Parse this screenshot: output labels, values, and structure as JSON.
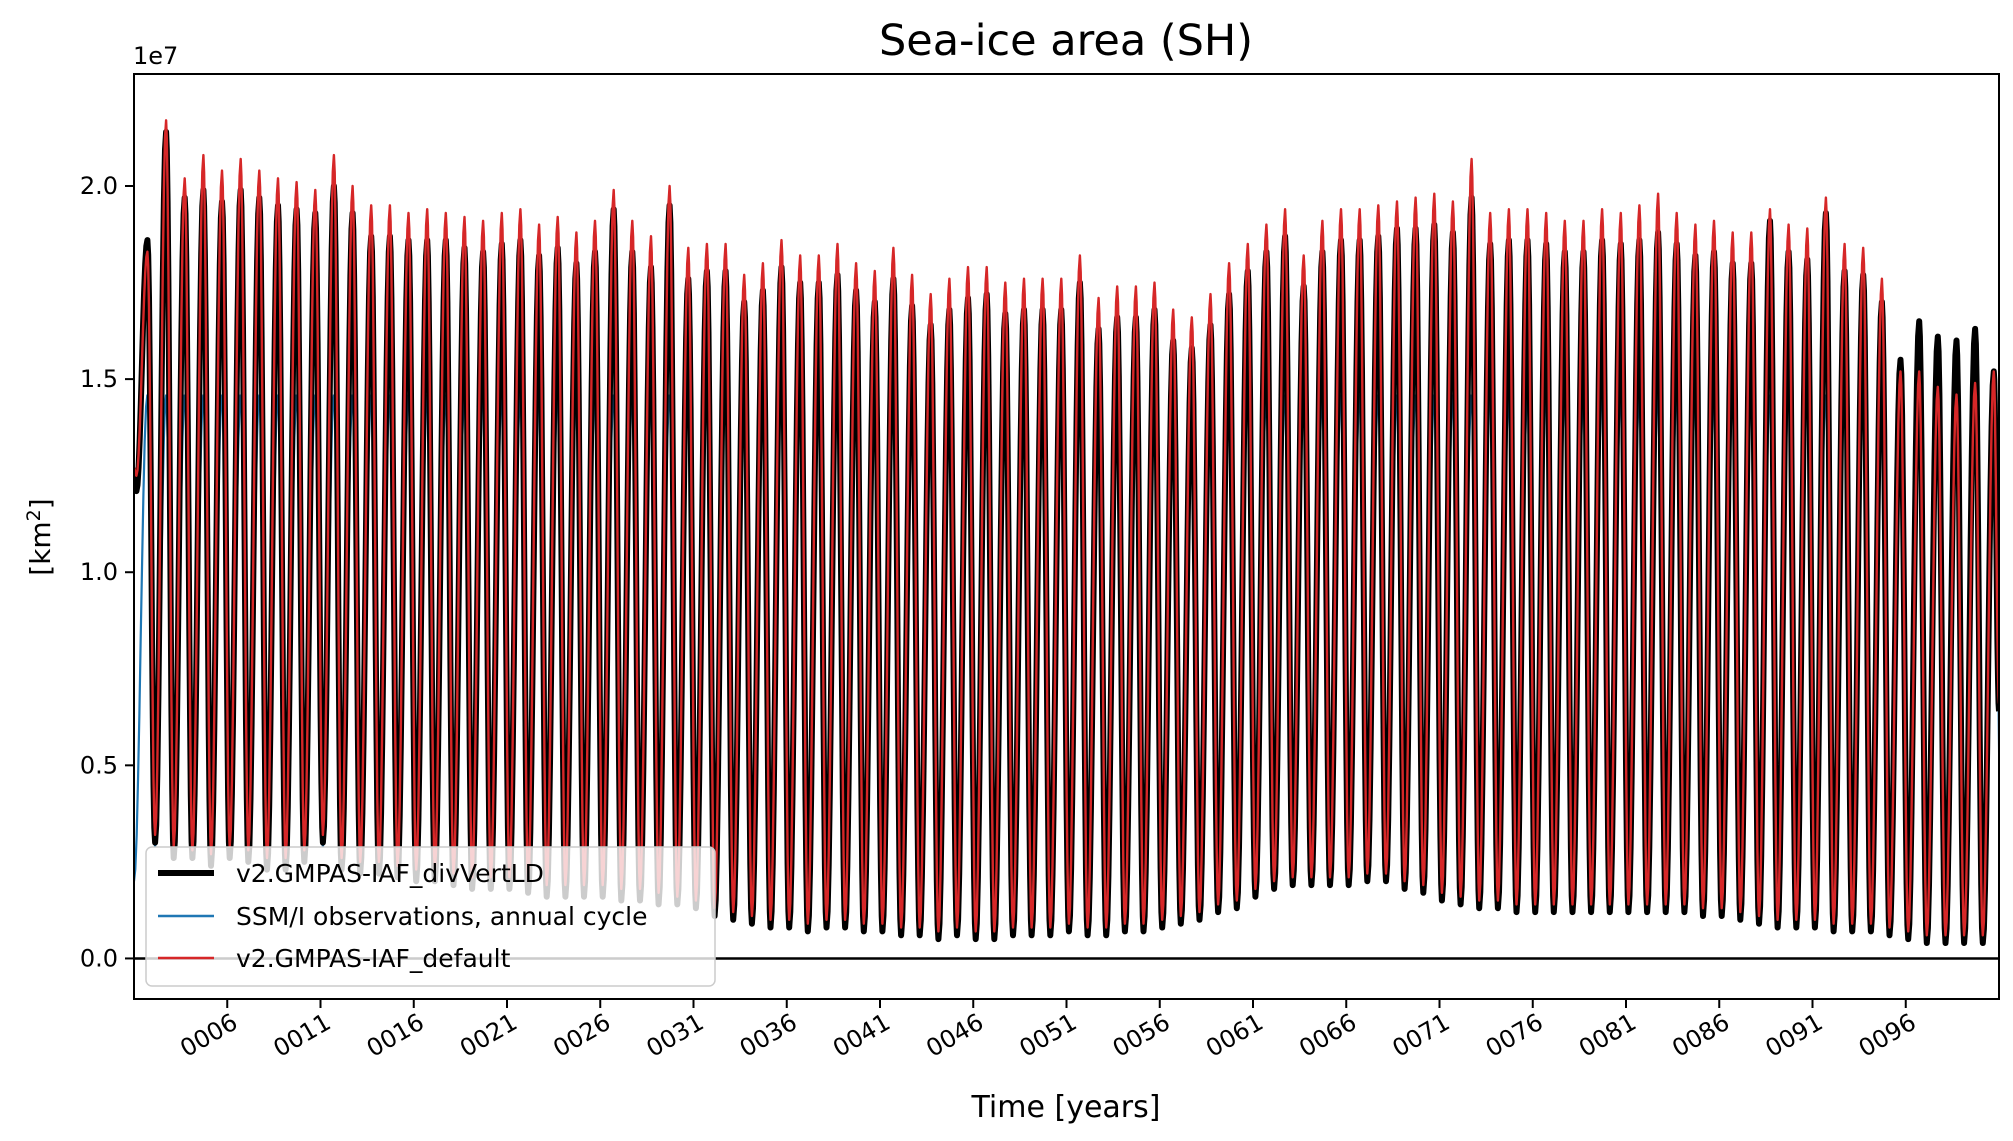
{
  "chart_data": {
    "type": "line",
    "title": "Sea-ice area (SH)",
    "xlabel": "Time [years]",
    "ylabel_main": "[km",
    "ylabel_sup": "2",
    "ylabel_close": "]",
    "offset_text": "1e7",
    "xlim": [
      1,
      101
    ],
    "ylim": [
      -1.05,
      22.9
    ],
    "y_scale_note": "y values in units of 1e6 km^2 (axis shows 1e7 offset)",
    "yticks": [
      {
        "value": 0.0,
        "label": "0.0"
      },
      {
        "value": 5.0,
        "label": "0.5"
      },
      {
        "value": 10.0,
        "label": "1.0"
      },
      {
        "value": 15.0,
        "label": "1.5"
      },
      {
        "value": 20.0,
        "label": "2.0"
      }
    ],
    "xticks": [
      {
        "value": 6,
        "label": "0006"
      },
      {
        "value": 11,
        "label": "0011"
      },
      {
        "value": 16,
        "label": "0016"
      },
      {
        "value": 21,
        "label": "0021"
      },
      {
        "value": 26,
        "label": "0026"
      },
      {
        "value": 31,
        "label": "0031"
      },
      {
        "value": 36,
        "label": "0036"
      },
      {
        "value": 41,
        "label": "0041"
      },
      {
        "value": 46,
        "label": "0046"
      },
      {
        "value": 51,
        "label": "0051"
      },
      {
        "value": 56,
        "label": "0056"
      },
      {
        "value": 61,
        "label": "0061"
      },
      {
        "value": 66,
        "label": "0066"
      },
      {
        "value": 71,
        "label": "0071"
      },
      {
        "value": 76,
        "label": "0076"
      },
      {
        "value": 81,
        "label": "0081"
      },
      {
        "value": 86,
        "label": "0086"
      },
      {
        "value": 91,
        "label": "0091"
      },
      {
        "value": 96,
        "label": "0096"
      }
    ],
    "zero_line": 0,
    "legend_position": "lower-left",
    "series": [
      {
        "name": "v2.GMPAS-IAF_divVertLD",
        "color": "#000000",
        "style": "thick",
        "start": 12.3,
        "years": [
          1,
          2,
          3,
          4,
          5,
          6,
          7,
          8,
          9,
          10,
          11,
          12,
          13,
          14,
          15,
          16,
          17,
          18,
          19,
          20,
          21,
          22,
          23,
          24,
          25,
          26,
          27,
          28,
          29,
          30,
          31,
          32,
          33,
          34,
          35,
          36,
          37,
          38,
          39,
          40,
          41,
          42,
          43,
          44,
          45,
          46,
          47,
          48,
          49,
          50,
          51,
          52,
          53,
          54,
          55,
          56,
          57,
          58,
          59,
          60,
          61,
          62,
          63,
          64,
          65,
          66,
          67,
          68,
          69,
          70,
          71,
          72,
          73,
          74,
          75,
          76,
          77,
          78,
          79,
          80,
          81,
          82,
          83,
          84,
          85,
          86,
          87,
          88,
          89,
          90,
          91,
          92,
          93,
          94,
          95,
          96,
          97,
          98,
          99,
          100
        ],
        "peaks": [
          18.6,
          21.4,
          19.7,
          19.9,
          19.6,
          19.9,
          19.7,
          19.5,
          19.4,
          19.3,
          20.0,
          19.3,
          18.7,
          18.7,
          18.6,
          18.6,
          18.6,
          18.4,
          18.3,
          18.5,
          18.6,
          18.2,
          18.4,
          18.0,
          18.3,
          19.4,
          18.3,
          17.9,
          19.5,
          17.6,
          17.8,
          17.8,
          17.0,
          17.3,
          17.9,
          17.5,
          17.5,
          17.7,
          17.3,
          17.0,
          17.6,
          16.9,
          16.4,
          16.8,
          17.1,
          17.2,
          16.7,
          16.8,
          16.8,
          16.8,
          17.5,
          16.3,
          16.6,
          16.6,
          16.8,
          16.0,
          15.8,
          16.4,
          17.2,
          17.8,
          18.3,
          18.7,
          17.4,
          18.3,
          18.6,
          18.6,
          18.7,
          18.9,
          18.9,
          19.0,
          18.8,
          19.7,
          18.5,
          18.6,
          18.6,
          18.5,
          18.3,
          18.3,
          18.6,
          18.5,
          18.6,
          18.8,
          18.5,
          18.2,
          18.3,
          18.0,
          18.0,
          19.1,
          18.3,
          18.1,
          19.3,
          17.8,
          17.7,
          17.0,
          15.5,
          16.5,
          16.1,
          16.0,
          16.3,
          15.2
        ],
        "troughs": [
          12.1,
          3.0,
          2.6,
          2.6,
          2.4,
          2.6,
          2.5,
          2.3,
          2.3,
          2.5,
          3.0,
          2.3,
          2.2,
          2.2,
          2.1,
          2.0,
          2.0,
          1.9,
          1.8,
          1.8,
          1.8,
          1.7,
          1.6,
          1.6,
          1.6,
          1.6,
          1.5,
          1.5,
          1.4,
          1.4,
          1.3,
          1.1,
          1.0,
          0.9,
          0.8,
          0.8,
          0.7,
          0.8,
          0.8,
          0.7,
          0.7,
          0.6,
          0.6,
          0.5,
          0.6,
          0.5,
          0.5,
          0.6,
          0.6,
          0.6,
          0.7,
          0.6,
          0.6,
          0.7,
          0.7,
          0.8,
          0.9,
          1.0,
          1.2,
          1.3,
          1.6,
          1.8,
          1.9,
          1.9,
          1.9,
          1.9,
          2.0,
          2.0,
          1.8,
          1.7,
          1.5,
          1.4,
          1.3,
          1.3,
          1.2,
          1.2,
          1.2,
          1.2,
          1.2,
          1.2,
          1.2,
          1.2,
          1.2,
          1.2,
          1.1,
          1.1,
          1.0,
          0.9,
          0.8,
          0.8,
          0.8,
          0.7,
          0.7,
          0.7,
          0.6,
          0.5,
          0.4,
          0.4,
          0.4,
          0.4
        ],
        "end": 6.4
      },
      {
        "name": "v2.GMPAS-IAF_default",
        "color": "#d62728",
        "style": "thin",
        "start": 12.7,
        "years": [
          1,
          2,
          3,
          4,
          5,
          6,
          7,
          8,
          9,
          10,
          11,
          12,
          13,
          14,
          15,
          16,
          17,
          18,
          19,
          20,
          21,
          22,
          23,
          24,
          25,
          26,
          27,
          28,
          29,
          30,
          31,
          32,
          33,
          34,
          35,
          36,
          37,
          38,
          39,
          40,
          41,
          42,
          43,
          44,
          45,
          46,
          47,
          48,
          49,
          50,
          51,
          52,
          53,
          54,
          55,
          56,
          57,
          58,
          59,
          60,
          61,
          62,
          63,
          64,
          65,
          66,
          67,
          68,
          69,
          70,
          71,
          72,
          73,
          74,
          75,
          76,
          77,
          78,
          79,
          80,
          81,
          82,
          83,
          84,
          85,
          86,
          87,
          88,
          89,
          90,
          91,
          92,
          93,
          94,
          95,
          96,
          97,
          98,
          99,
          100
        ],
        "peaks": [
          18.3,
          21.7,
          20.2,
          20.8,
          20.4,
          20.7,
          20.4,
          20.2,
          20.1,
          19.9,
          20.8,
          20.0,
          19.5,
          19.5,
          19.3,
          19.4,
          19.3,
          19.2,
          19.1,
          19.3,
          19.4,
          19.0,
          19.2,
          18.8,
          19.1,
          19.9,
          19.1,
          18.7,
          20.0,
          18.4,
          18.5,
          18.5,
          17.7,
          18.0,
          18.6,
          18.2,
          18.2,
          18.5,
          18.0,
          17.8,
          18.4,
          17.7,
          17.2,
          17.6,
          17.9,
          17.9,
          17.5,
          17.6,
          17.6,
          17.6,
          18.2,
          17.1,
          17.4,
          17.4,
          17.5,
          16.8,
          16.6,
          17.2,
          18.0,
          18.5,
          19.0,
          19.4,
          18.2,
          19.1,
          19.4,
          19.4,
          19.5,
          19.6,
          19.7,
          19.8,
          19.6,
          20.7,
          19.3,
          19.4,
          19.4,
          19.3,
          19.1,
          19.1,
          19.4,
          19.3,
          19.5,
          19.8,
          19.3,
          19.0,
          19.1,
          18.8,
          18.8,
          19.4,
          19.0,
          18.9,
          19.7,
          18.5,
          18.4,
          17.6,
          15.2,
          15.2,
          14.8,
          14.6,
          14.9,
          15.2
        ],
        "troughs": [
          12.5,
          3.2,
          2.9,
          2.8,
          2.7,
          2.9,
          2.8,
          2.6,
          2.6,
          2.8,
          3.2,
          2.6,
          2.5,
          2.5,
          2.4,
          2.3,
          2.3,
          2.2,
          2.1,
          2.1,
          2.1,
          2.0,
          1.9,
          1.9,
          1.9,
          1.9,
          1.8,
          1.8,
          1.7,
          1.6,
          1.5,
          1.3,
          1.2,
          1.1,
          1.0,
          1.0,
          0.9,
          1.0,
          1.0,
          0.9,
          0.9,
          0.8,
          0.8,
          0.7,
          0.8,
          0.7,
          0.7,
          0.8,
          0.8,
          0.8,
          0.9,
          0.8,
          0.8,
          0.9,
          0.9,
          1.0,
          1.1,
          1.2,
          1.4,
          1.5,
          1.8,
          2.0,
          2.1,
          2.1,
          2.1,
          2.1,
          2.2,
          2.2,
          2.0,
          1.9,
          1.7,
          1.6,
          1.5,
          1.5,
          1.4,
          1.4,
          1.4,
          1.4,
          1.4,
          1.4,
          1.4,
          1.4,
          1.4,
          1.4,
          1.3,
          1.3,
          1.2,
          1.1,
          1.0,
          1.0,
          1.0,
          0.9,
          0.9,
          0.9,
          0.8,
          0.7,
          0.6,
          0.6,
          0.6,
          0.6
        ],
        "end": 6.6
      },
      {
        "name": "SSM/I observations, annual cycle",
        "color": "#1f77b4",
        "style": "thin",
        "cycle_peak": 14.6,
        "cycle_trough": 2.9,
        "first_year_start": 2.0,
        "note": "Same climatological annual cycle repeated each year (max ~1.46e7, min ~2.9e6); mostly hidden behind model curves"
      }
    ]
  },
  "legend": {
    "items": [
      {
        "label": "v2.GMPAS-IAF_divVertLD",
        "color": "#000000"
      },
      {
        "label": "SSM/I observations, annual cycle",
        "color": "#1f77b4"
      },
      {
        "label": "v2.GMPAS-IAF_default",
        "color": "#d62728"
      }
    ]
  }
}
